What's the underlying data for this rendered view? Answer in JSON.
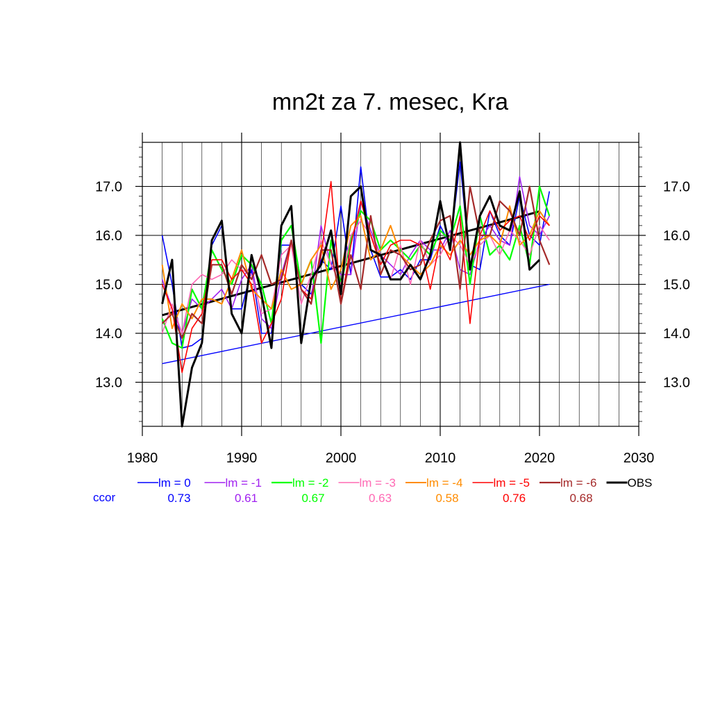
{
  "chart_data": {
    "type": "line",
    "title": "mn2t za 7. mesec, Kra",
    "xlabel": "",
    "ylabel": "",
    "xlim": [
      1980,
      2030
    ],
    "ylim": [
      12.1,
      17.9
    ],
    "x_ticks": [
      "1980",
      "1990",
      "2000",
      "2010",
      "2020",
      "2030"
    ],
    "y_ticks": [
      "13.0",
      "14.0",
      "15.0",
      "16.0",
      "17.0"
    ],
    "grid": true,
    "legend_position": "bottom",
    "ccor_label": "ccor",
    "x": [
      1982,
      1983,
      1984,
      1985,
      1986,
      1987,
      1988,
      1989,
      1990,
      1991,
      1992,
      1993,
      1994,
      1995,
      1996,
      1997,
      1998,
      1999,
      2000,
      2001,
      2002,
      2003,
      2004,
      2005,
      2006,
      2007,
      2008,
      2009,
      2010,
      2011,
      2012,
      2013,
      2014,
      2015,
      2016,
      2017,
      2018,
      2019,
      2020,
      2021
    ],
    "series": [
      {
        "name": "lm = 0",
        "color": "#0000ff",
        "ccor": "0.73",
        "width": 1.6,
        "values": [
          16.0,
          15.0,
          13.7,
          13.75,
          13.9,
          15.8,
          16.2,
          14.5,
          14.5,
          15.3,
          14.0,
          14.0,
          15.8,
          15.8,
          15.0,
          14.8,
          15.5,
          15.3,
          16.6,
          15.2,
          17.4,
          15.7,
          15.15,
          15.15,
          15.3,
          15.1,
          15.5,
          15.5,
          16.2,
          15.8,
          17.5,
          15.4,
          15.3,
          16.5,
          16.0,
          15.8,
          16.8,
          16.0,
          15.8,
          16.9
        ]
      },
      {
        "name": "lm = -1",
        "color": "#a020f0",
        "ccor": "0.61",
        "width": 1.6,
        "values": [
          15.1,
          14.5,
          14.0,
          14.7,
          14.5,
          14.7,
          14.9,
          14.5,
          15.1,
          15.4,
          14.3,
          14.1,
          15.2,
          15.9,
          14.9,
          14.7,
          16.2,
          15.4,
          15.2,
          15.2,
          16.7,
          16.1,
          15.6,
          15.4,
          15.2,
          15.6,
          15.9,
          15.7,
          15.7,
          16.1,
          15.3,
          15.2,
          15.9,
          16.2,
          15.9,
          15.8,
          17.2,
          16.2,
          16.0,
          16.4
        ]
      },
      {
        "name": "lm = -2",
        "color": "#00ff00",
        "ccor": "0.67",
        "width": 2.2,
        "values": [
          14.3,
          13.8,
          13.7,
          14.9,
          14.5,
          15.7,
          15.3,
          15.0,
          15.6,
          15.4,
          15.0,
          14.2,
          15.9,
          16.2,
          15.0,
          15.5,
          13.8,
          15.9,
          15.0,
          15.9,
          16.5,
          16.3,
          15.7,
          15.9,
          15.7,
          15.5,
          15.8,
          15.6,
          16.1,
          15.9,
          16.6,
          15.0,
          16.4,
          15.6,
          15.8,
          15.5,
          16.2,
          15.4,
          17.0,
          16.4
        ]
      },
      {
        "name": "lm = -3",
        "color": "#ff69b4",
        "ccor": "0.63",
        "width": 1.6,
        "values": [
          14.0,
          14.6,
          14.0,
          15.0,
          15.2,
          15.1,
          15.2,
          15.5,
          15.3,
          15.2,
          14.4,
          14.5,
          15.6,
          15.8,
          14.6,
          15.2,
          15.9,
          15.4,
          15.0,
          16.0,
          16.3,
          16.0,
          15.6,
          15.1,
          15.8,
          15.0,
          15.9,
          15.4,
          15.6,
          16.0,
          15.8,
          15.4,
          15.8,
          16.0,
          15.6,
          16.1,
          15.9,
          15.6,
          16.2,
          15.9
        ]
      },
      {
        "name": "lm = -4",
        "color": "#ff8c00",
        "ccor": "0.58",
        "width": 2.0,
        "values": [
          15.4,
          14.1,
          14.6,
          14.3,
          14.7,
          14.7,
          14.6,
          15.1,
          15.7,
          14.9,
          14.7,
          14.5,
          15.3,
          14.9,
          15.0,
          15.5,
          15.8,
          14.9,
          15.3,
          16.2,
          16.4,
          15.5,
          15.7,
          16.2,
          15.6,
          15.4,
          15.2,
          15.4,
          15.8,
          15.6,
          15.9,
          15.6,
          15.9,
          16.0,
          15.8,
          16.6,
          15.8,
          16.0,
          16.5,
          16.2
        ]
      },
      {
        "name": "lm = -5",
        "color": "#ff0000",
        "ccor": "0.76",
        "width": 1.6,
        "values": [
          15.0,
          14.5,
          13.2,
          14.1,
          14.4,
          15.5,
          15.5,
          15.1,
          15.3,
          15.0,
          13.8,
          14.2,
          14.7,
          15.9,
          14.9,
          14.7,
          15.6,
          17.1,
          14.6,
          15.8,
          16.7,
          16.0,
          15.4,
          15.8,
          15.9,
          15.9,
          15.8,
          14.9,
          15.9,
          15.5,
          16.4,
          14.2,
          16.0,
          16.5,
          16.1,
          16.3,
          16.4,
          15.9,
          16.4,
          16.2
        ]
      },
      {
        "name": "lm = -6",
        "color": "#a52a2a",
        "ccor": "0.68",
        "width": 2.2,
        "values": [
          14.2,
          14.4,
          13.9,
          14.4,
          14.2,
          15.4,
          15.4,
          14.8,
          15.4,
          15.1,
          15.6,
          15.0,
          15.1,
          15.9,
          14.9,
          14.6,
          15.7,
          15.7,
          14.6,
          15.6,
          14.9,
          16.4,
          15.2,
          15.7,
          15.6,
          15.3,
          15.4,
          15.9,
          16.3,
          16.4,
          14.9,
          17.0,
          16.0,
          16.0,
          16.7,
          16.5,
          16.0,
          17.0,
          15.9,
          15.4
        ]
      },
      {
        "name": "OBS",
        "color": "#000000",
        "ccor": "",
        "width": 3.0,
        "values": [
          14.6,
          15.5,
          12.1,
          13.3,
          13.8,
          15.9,
          16.3,
          14.4,
          14.0,
          15.6,
          14.8,
          13.7,
          16.2,
          16.6,
          13.8,
          15.1,
          15.4,
          16.1,
          14.8,
          16.8,
          17.0,
          15.7,
          15.6,
          15.1,
          15.1,
          15.4,
          15.1,
          15.6,
          16.7,
          15.7,
          17.9,
          15.3,
          16.4,
          16.8,
          16.2,
          16.1,
          16.9,
          15.3,
          15.5,
          null
        ]
      }
    ],
    "trend_lines": [
      {
        "series": "lm = 0",
        "color": "#0000ff",
        "width": 1.4,
        "x": [
          1982,
          2021
        ],
        "y": [
          13.38,
          15.0
        ]
      },
      {
        "series": "OBS",
        "color": "#000000",
        "width": 3.0,
        "x": [
          1982,
          2020
        ],
        "y": [
          14.37,
          16.49
        ]
      }
    ]
  }
}
